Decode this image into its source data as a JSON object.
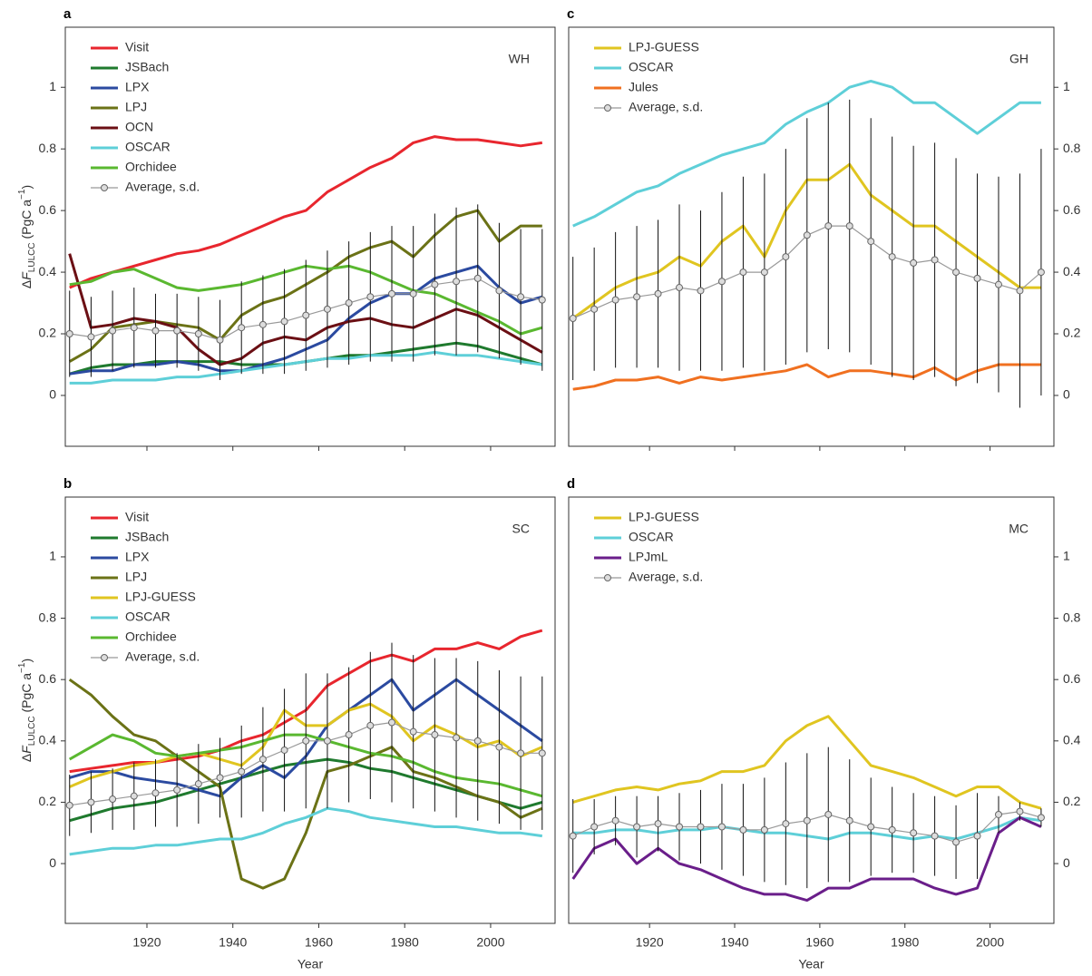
{
  "chart_data": [
    {
      "type": "line",
      "panel": "a",
      "region": "WH",
      "yaxis_side": "left",
      "xtick_labels": false,
      "ylabel": [
        {
          "text": "Δ"
        },
        {
          "text": "F",
          "style": "italic"
        },
        {
          "text": "LULCC",
          "style": "sub"
        },
        {
          "text": " (PgC a"
        },
        {
          "text": "−1",
          "style": "sup"
        },
        {
          "text": ")"
        }
      ],
      "xlim": [
        1901,
        2015
      ],
      "ylim": [
        -0.165,
        1.195
      ],
      "xticks": [
        1920,
        1940,
        1960,
        1980,
        2000
      ],
      "yticks": [
        0,
        0.2,
        0.4,
        0.6,
        0.8,
        1
      ],
      "x": [
        1902,
        1907,
        1912,
        1917,
        1922,
        1927,
        1932,
        1937,
        1942,
        1947,
        1952,
        1957,
        1962,
        1967,
        1972,
        1977,
        1982,
        1987,
        1992,
        1997,
        2002,
        2007,
        2012
      ],
      "series": [
        {
          "name": "Visit",
          "color": "#e8262e",
          "values": [
            0.35,
            0.38,
            0.4,
            0.42,
            0.44,
            0.46,
            0.47,
            0.49,
            0.52,
            0.55,
            0.58,
            0.6,
            0.66,
            0.7,
            0.74,
            0.77,
            0.82,
            0.84,
            0.83,
            0.83,
            0.82,
            0.81,
            0.82
          ]
        },
        {
          "name": "JSBach",
          "color": "#1f7a2e",
          "values": [
            0.07,
            0.09,
            0.1,
            0.1,
            0.11,
            0.11,
            0.11,
            0.11,
            0.1,
            0.1,
            0.1,
            0.11,
            0.12,
            0.13,
            0.13,
            0.14,
            0.15,
            0.16,
            0.17,
            0.16,
            0.14,
            0.12,
            0.1
          ]
        },
        {
          "name": "LPX",
          "color": "#2b4aa0",
          "values": [
            0.07,
            0.08,
            0.08,
            0.1,
            0.1,
            0.11,
            0.1,
            0.08,
            0.08,
            0.1,
            0.12,
            0.15,
            0.18,
            0.25,
            0.3,
            0.33,
            0.33,
            0.38,
            0.4,
            0.42,
            0.35,
            0.3,
            0.32
          ]
        },
        {
          "name": "LPJ",
          "color": "#6b7216",
          "values": [
            0.11,
            0.15,
            0.22,
            0.23,
            0.24,
            0.23,
            0.22,
            0.18,
            0.26,
            0.3,
            0.32,
            0.36,
            0.4,
            0.45,
            0.48,
            0.5,
            0.45,
            0.52,
            0.58,
            0.6,
            0.5,
            0.55,
            0.55
          ]
        },
        {
          "name": "OCN",
          "color": "#6b0f14",
          "values": [
            0.46,
            0.22,
            0.23,
            0.25,
            0.24,
            0.22,
            0.15,
            0.1,
            0.12,
            0.17,
            0.19,
            0.18,
            0.22,
            0.24,
            0.25,
            0.23,
            0.22,
            0.25,
            0.28,
            0.26,
            0.22,
            0.18,
            0.14
          ]
        },
        {
          "name": "OSCAR",
          "color": "#5ecfd8",
          "values": [
            0.04,
            0.04,
            0.05,
            0.05,
            0.05,
            0.06,
            0.06,
            0.07,
            0.08,
            0.09,
            0.1,
            0.11,
            0.12,
            0.12,
            0.13,
            0.13,
            0.13,
            0.14,
            0.13,
            0.13,
            0.12,
            0.11,
            0.1
          ]
        },
        {
          "name": "Orchidee",
          "color": "#5ab830",
          "values": [
            0.36,
            0.37,
            0.4,
            0.41,
            0.38,
            0.35,
            0.34,
            0.35,
            0.36,
            0.38,
            0.4,
            0.42,
            0.41,
            0.42,
            0.4,
            0.37,
            0.34,
            0.33,
            0.3,
            0.27,
            0.24,
            0.2,
            0.22
          ]
        },
        {
          "name": "Average, s.d.",
          "color": "#999999",
          "marker": "circle",
          "values": [
            0.2,
            0.19,
            0.21,
            0.22,
            0.21,
            0.21,
            0.2,
            0.18,
            0.22,
            0.23,
            0.24,
            0.26,
            0.28,
            0.3,
            0.32,
            0.33,
            0.33,
            0.36,
            0.37,
            0.38,
            0.34,
            0.32,
            0.31
          ],
          "sd": [
            0.14,
            0.13,
            0.13,
            0.13,
            0.12,
            0.12,
            0.12,
            0.13,
            0.15,
            0.16,
            0.17,
            0.18,
            0.19,
            0.2,
            0.21,
            0.22,
            0.22,
            0.23,
            0.24,
            0.24,
            0.22,
            0.22,
            0.23
          ]
        }
      ]
    },
    {
      "type": "line",
      "panel": "b",
      "region": "SC",
      "yaxis_side": "left",
      "xtick_labels": true,
      "xlabel": "Year",
      "ylabel": [
        {
          "text": "Δ"
        },
        {
          "text": "F",
          "style": "italic"
        },
        {
          "text": "LULCC",
          "style": "sub"
        },
        {
          "text": " (PgC a"
        },
        {
          "text": "−1",
          "style": "sup"
        },
        {
          "text": ")"
        }
      ],
      "xlim": [
        1901,
        2015
      ],
      "ylim": [
        -0.195,
        1.195
      ],
      "xticks": [
        1920,
        1940,
        1960,
        1980,
        2000
      ],
      "yticks": [
        0,
        0.2,
        0.4,
        0.6,
        0.8,
        1
      ],
      "x": [
        1902,
        1907,
        1912,
        1917,
        1922,
        1927,
        1932,
        1937,
        1942,
        1947,
        1952,
        1957,
        1962,
        1967,
        1972,
        1977,
        1982,
        1987,
        1992,
        1997,
        2002,
        2007,
        2012
      ],
      "series": [
        {
          "name": "Visit",
          "color": "#e8262e",
          "values": [
            0.3,
            0.31,
            0.32,
            0.33,
            0.33,
            0.34,
            0.35,
            0.37,
            0.4,
            0.42,
            0.46,
            0.5,
            0.58,
            0.62,
            0.66,
            0.68,
            0.66,
            0.7,
            0.7,
            0.72,
            0.7,
            0.74,
            0.76
          ]
        },
        {
          "name": "JSBach",
          "color": "#1f7a2e",
          "values": [
            0.14,
            0.16,
            0.18,
            0.19,
            0.2,
            0.22,
            0.24,
            0.26,
            0.28,
            0.3,
            0.32,
            0.33,
            0.34,
            0.33,
            0.31,
            0.3,
            0.28,
            0.26,
            0.24,
            0.22,
            0.2,
            0.18,
            0.2
          ]
        },
        {
          "name": "LPX",
          "color": "#2b4aa0",
          "values": [
            0.28,
            0.3,
            0.3,
            0.28,
            0.27,
            0.26,
            0.24,
            0.22,
            0.28,
            0.32,
            0.28,
            0.35,
            0.45,
            0.5,
            0.55,
            0.6,
            0.5,
            0.55,
            0.6,
            0.55,
            0.5,
            0.45,
            0.4
          ]
        },
        {
          "name": "LPJ",
          "color": "#6b7216",
          "values": [
            0.6,
            0.55,
            0.48,
            0.42,
            0.4,
            0.35,
            0.3,
            0.25,
            -0.05,
            -0.08,
            -0.05,
            0.1,
            0.3,
            0.32,
            0.35,
            0.38,
            0.3,
            0.28,
            0.25,
            0.22,
            0.2,
            0.15,
            0.18
          ]
        },
        {
          "name": "LPJ-GUESS",
          "color": "#e0c520",
          "values": [
            0.25,
            0.28,
            0.3,
            0.32,
            0.33,
            0.35,
            0.36,
            0.34,
            0.32,
            0.38,
            0.5,
            0.45,
            0.45,
            0.5,
            0.52,
            0.48,
            0.4,
            0.45,
            0.42,
            0.38,
            0.4,
            0.35,
            0.38
          ]
        },
        {
          "name": "OSCAR",
          "color": "#5ecfd8",
          "values": [
            0.03,
            0.04,
            0.05,
            0.05,
            0.06,
            0.06,
            0.07,
            0.08,
            0.08,
            0.1,
            0.13,
            0.15,
            0.18,
            0.17,
            0.15,
            0.14,
            0.13,
            0.12,
            0.12,
            0.11,
            0.1,
            0.1,
            0.09
          ]
        },
        {
          "name": "Orchidee",
          "color": "#5ab830",
          "values": [
            0.34,
            0.38,
            0.42,
            0.4,
            0.36,
            0.35,
            0.36,
            0.37,
            0.38,
            0.4,
            0.42,
            0.42,
            0.4,
            0.38,
            0.36,
            0.35,
            0.33,
            0.3,
            0.28,
            0.27,
            0.26,
            0.24,
            0.22
          ]
        },
        {
          "name": "Average, s.d.",
          "color": "#999999",
          "marker": "circle",
          "values": [
            0.19,
            0.2,
            0.21,
            0.22,
            0.23,
            0.24,
            0.26,
            0.28,
            0.3,
            0.34,
            0.37,
            0.4,
            0.4,
            0.42,
            0.45,
            0.46,
            0.43,
            0.42,
            0.41,
            0.4,
            0.38,
            0.36,
            0.36
          ],
          "sd": [
            0.1,
            0.1,
            0.1,
            0.11,
            0.11,
            0.12,
            0.13,
            0.13,
            0.15,
            0.17,
            0.2,
            0.22,
            0.22,
            0.22,
            0.24,
            0.26,
            0.25,
            0.25,
            0.26,
            0.26,
            0.25,
            0.25,
            0.25
          ]
        }
      ]
    },
    {
      "type": "line",
      "panel": "c",
      "region": "GH",
      "yaxis_side": "right",
      "xtick_labels": false,
      "xlim": [
        1901,
        2015
      ],
      "ylim": [
        -0.165,
        1.195
      ],
      "xticks": [
        1920,
        1940,
        1960,
        1980,
        2000
      ],
      "yticks": [
        0,
        0.2,
        0.4,
        0.6,
        0.8,
        1
      ],
      "x": [
        1902,
        1907,
        1912,
        1917,
        1922,
        1927,
        1932,
        1937,
        1942,
        1947,
        1952,
        1957,
        1962,
        1967,
        1972,
        1977,
        1982,
        1987,
        1992,
        1997,
        2002,
        2007,
        2012
      ],
      "series": [
        {
          "name": "LPJ-GUESS",
          "color": "#e0c520",
          "values": [
            0.25,
            0.3,
            0.35,
            0.38,
            0.4,
            0.45,
            0.42,
            0.5,
            0.55,
            0.45,
            0.6,
            0.7,
            0.7,
            0.75,
            0.65,
            0.6,
            0.55,
            0.55,
            0.5,
            0.45,
            0.4,
            0.35,
            0.35
          ]
        },
        {
          "name": "OSCAR",
          "color": "#5ecfd8",
          "values": [
            0.55,
            0.58,
            0.62,
            0.66,
            0.68,
            0.72,
            0.75,
            0.78,
            0.8,
            0.82,
            0.88,
            0.92,
            0.95,
            1.0,
            1.02,
            1.0,
            0.95,
            0.95,
            0.9,
            0.85,
            0.9,
            0.95,
            0.95
          ]
        },
        {
          "name": "Jules",
          "color": "#f07020",
          "values": [
            0.02,
            0.03,
            0.05,
            0.05,
            0.06,
            0.04,
            0.06,
            0.05,
            0.06,
            0.07,
            0.08,
            0.1,
            0.06,
            0.08,
            0.08,
            0.07,
            0.06,
            0.09,
            0.05,
            0.08,
            0.1,
            0.1,
            0.1
          ]
        },
        {
          "name": "Average, s.d.",
          "color": "#999999",
          "marker": "circle",
          "values": [
            0.25,
            0.28,
            0.31,
            0.32,
            0.33,
            0.35,
            0.34,
            0.37,
            0.4,
            0.4,
            0.45,
            0.52,
            0.55,
            0.55,
            0.5,
            0.45,
            0.43,
            0.44,
            0.4,
            0.38,
            0.36,
            0.34,
            0.4
          ],
          "sd": [
            0.2,
            0.2,
            0.22,
            0.23,
            0.24,
            0.27,
            0.26,
            0.29,
            0.31,
            0.32,
            0.35,
            0.38,
            0.4,
            0.41,
            0.4,
            0.39,
            0.38,
            0.38,
            0.37,
            0.34,
            0.35,
            0.38,
            0.4
          ]
        }
      ]
    },
    {
      "type": "line",
      "panel": "d",
      "region": "MC",
      "yaxis_side": "right",
      "xtick_labels": true,
      "xlabel": "Year",
      "xlim": [
        1901,
        2015
      ],
      "ylim": [
        -0.195,
        1.195
      ],
      "xticks": [
        1920,
        1940,
        1960,
        1980,
        2000
      ],
      "yticks": [
        0,
        0.2,
        0.4,
        0.6,
        0.8,
        1
      ],
      "x": [
        1902,
        1907,
        1912,
        1917,
        1922,
        1927,
        1932,
        1937,
        1942,
        1947,
        1952,
        1957,
        1962,
        1967,
        1972,
        1977,
        1982,
        1987,
        1992,
        1997,
        2002,
        2007,
        2012
      ],
      "series": [
        {
          "name": "LPJ-GUESS",
          "color": "#e0c520",
          "values": [
            0.2,
            0.22,
            0.24,
            0.25,
            0.24,
            0.26,
            0.27,
            0.3,
            0.3,
            0.32,
            0.4,
            0.45,
            0.48,
            0.4,
            0.32,
            0.3,
            0.28,
            0.25,
            0.22,
            0.25,
            0.25,
            0.2,
            0.18
          ]
        },
        {
          "name": "OSCAR",
          "color": "#5ecfd8",
          "values": [
            0.1,
            0.1,
            0.11,
            0.11,
            0.1,
            0.11,
            0.11,
            0.12,
            0.11,
            0.1,
            0.1,
            0.09,
            0.08,
            0.1,
            0.1,
            0.09,
            0.08,
            0.09,
            0.08,
            0.1,
            0.12,
            0.15,
            0.14
          ]
        },
        {
          "name": "LPJmL",
          "color": "#6a1e8a",
          "values": [
            -0.05,
            0.05,
            0.08,
            0.0,
            0.05,
            0.0,
            -0.02,
            -0.05,
            -0.08,
            -0.1,
            -0.1,
            -0.12,
            -0.08,
            -0.08,
            -0.05,
            -0.05,
            -0.05,
            -0.08,
            -0.1,
            -0.08,
            0.1,
            0.15,
            0.12
          ]
        },
        {
          "name": "Average, s.d.",
          "color": "#999999",
          "marker": "circle",
          "values": [
            0.09,
            0.12,
            0.14,
            0.12,
            0.13,
            0.12,
            0.12,
            0.12,
            0.11,
            0.11,
            0.13,
            0.14,
            0.16,
            0.14,
            0.12,
            0.11,
            0.1,
            0.09,
            0.07,
            0.09,
            0.16,
            0.17,
            0.15
          ],
          "sd": [
            0.12,
            0.09,
            0.08,
            0.1,
            0.09,
            0.11,
            0.12,
            0.14,
            0.15,
            0.17,
            0.2,
            0.22,
            0.22,
            0.2,
            0.16,
            0.14,
            0.13,
            0.13,
            0.12,
            0.14,
            0.06,
            0.03,
            0.03
          ]
        }
      ]
    }
  ]
}
